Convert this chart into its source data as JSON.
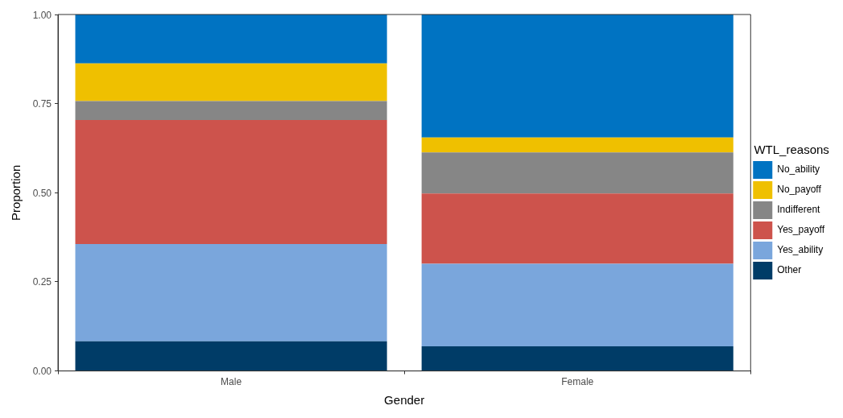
{
  "chart_data": {
    "type": "bar",
    "xlabel": "Gender",
    "ylabel": "Proportion",
    "legend_title": "WTL_reasons",
    "categories": [
      "Male",
      "Female"
    ],
    "stacked": true,
    "legend": "right",
    "grid": false,
    "ylim": [
      0,
      1.0
    ],
    "yticks": [
      {
        "value": 0,
        "label": "0.00"
      },
      {
        "value": 0.25,
        "label": "0.25"
      },
      {
        "value": 0.5,
        "label": "0.50"
      },
      {
        "value": 0.75,
        "label": "0.75"
      },
      {
        "value": 1,
        "label": "1.00"
      }
    ],
    "series": [
      {
        "name": "Other",
        "color": "#003c67",
        "values": [
          0.083,
          0.069
        ]
      },
      {
        "name": "Yes_ability",
        "color": "#7aa6dc",
        "values": [
          0.273,
          0.232
        ]
      },
      {
        "name": "Yes_payoff",
        "color": "#cd534c",
        "values": [
          0.348,
          0.197
        ]
      },
      {
        "name": "Indifferent",
        "color": "#868686",
        "values": [
          0.053,
          0.115
        ]
      },
      {
        "name": "No_payoff",
        "color": "#efc000",
        "values": [
          0.106,
          0.042
        ]
      },
      {
        "name": "No_ability",
        "color": "#0073c2",
        "values": [
          0.137,
          0.345
        ]
      }
    ]
  }
}
